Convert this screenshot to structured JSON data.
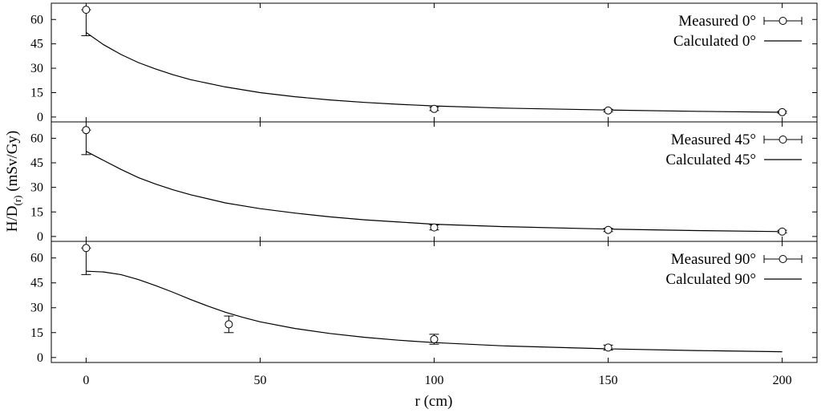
{
  "chart_data": {
    "type": "scatter",
    "layout": "three vertically stacked panels sharing the x axis",
    "xlabel": "r (cm)",
    "ylabel": "H/D(r) (mSv/Gy)",
    "ylabel_main": "H/D",
    "ylabel_sub": "(r)",
    "ylabel_rest": " (mSv/Gy)",
    "xlim": [
      -10,
      210
    ],
    "xticks": [
      0,
      50,
      100,
      150,
      200
    ],
    "xtick_labels": [
      "0",
      "50",
      "100",
      "150",
      "200"
    ],
    "legend_position": "top-right",
    "panels": [
      {
        "angle": "0°",
        "ylim": [
          -3,
          70
        ],
        "yticks": [
          0,
          15,
          30,
          45,
          60
        ],
        "ytick_labels": [
          "0",
          "15",
          "30",
          "45",
          "60"
        ],
        "measured": {
          "name": "Measured 0°",
          "points": [
            {
              "x": 0,
              "y": 66,
              "err_low": 16,
              "err_high": 0
            },
            {
              "x": 100,
              "y": 5,
              "err_low": 1,
              "err_high": 1
            },
            {
              "x": 150,
              "y": 4,
              "err_low": 0.8,
              "err_high": 0.8
            },
            {
              "x": 200,
              "y": 3,
              "err_low": 0.6,
              "err_high": 0.6
            }
          ]
        },
        "calculated": {
          "name": "Calculated 0°",
          "x": [
            0,
            5,
            10,
            15,
            20,
            25,
            30,
            40,
            50,
            60,
            70,
            80,
            90,
            100,
            120,
            150,
            175,
            200
          ],
          "y": [
            52,
            44.5,
            38.5,
            33.5,
            29.5,
            26,
            23,
            18.5,
            15,
            12.5,
            10.5,
            9,
            7.8,
            6.8,
            5.5,
            4.3,
            3.5,
            2.9
          ]
        }
      },
      {
        "angle": "45°",
        "ylim": [
          -3,
          70
        ],
        "yticks": [
          0,
          15,
          30,
          45,
          60
        ],
        "ytick_labels": [
          "0",
          "15",
          "30",
          "45",
          "60"
        ],
        "measured": {
          "name": "Measured 45°",
          "points": [
            {
              "x": 0,
              "y": 65,
              "err_low": 15,
              "err_high": 0
            },
            {
              "x": 100,
              "y": 5.5,
              "err_low": 1.5,
              "err_high": 1.5
            },
            {
              "x": 150,
              "y": 4,
              "err_low": 1,
              "err_high": 1
            },
            {
              "x": 200,
              "y": 3,
              "err_low": 0.8,
              "err_high": 0.8
            }
          ]
        },
        "calculated": {
          "name": "Calculated 45°",
          "x": [
            0,
            5,
            10,
            15,
            20,
            25,
            30,
            40,
            50,
            60,
            70,
            80,
            90,
            100,
            120,
            150,
            175,
            200
          ],
          "y": [
            52,
            46.5,
            41,
            36,
            32,
            28.5,
            25.5,
            20.5,
            17,
            14.3,
            12,
            10.2,
            8.8,
            7.5,
            6,
            4.5,
            3.6,
            3
          ]
        }
      },
      {
        "angle": "90°",
        "ylim": [
          -3,
          70
        ],
        "yticks": [
          0,
          15,
          30,
          45,
          60
        ],
        "ytick_labels": [
          "0",
          "15",
          "30",
          "45",
          "60"
        ],
        "measured": {
          "name": "Measured 90°",
          "points": [
            {
              "x": 0,
              "y": 66,
              "err_low": 16,
              "err_high": 0
            },
            {
              "x": 41,
              "y": 20,
              "err_low": 5,
              "err_high": 5
            },
            {
              "x": 100,
              "y": 11,
              "err_low": 3,
              "err_high": 3
            },
            {
              "x": 150,
              "y": 6,
              "err_low": 1.5,
              "err_high": 1.5
            }
          ]
        },
        "calculated": {
          "name": "Calculated 90°",
          "x": [
            0,
            5,
            10,
            15,
            20,
            25,
            30,
            35,
            40,
            45,
            50,
            60,
            70,
            80,
            90,
            100,
            120,
            150,
            175,
            200
          ],
          "y": [
            52,
            51.6,
            50,
            47,
            43.3,
            39.3,
            35,
            31,
            27.3,
            24.2,
            21.5,
            17.5,
            14.5,
            12.2,
            10.4,
            9,
            7,
            5.2,
            4.2,
            3.5
          ]
        }
      }
    ]
  }
}
